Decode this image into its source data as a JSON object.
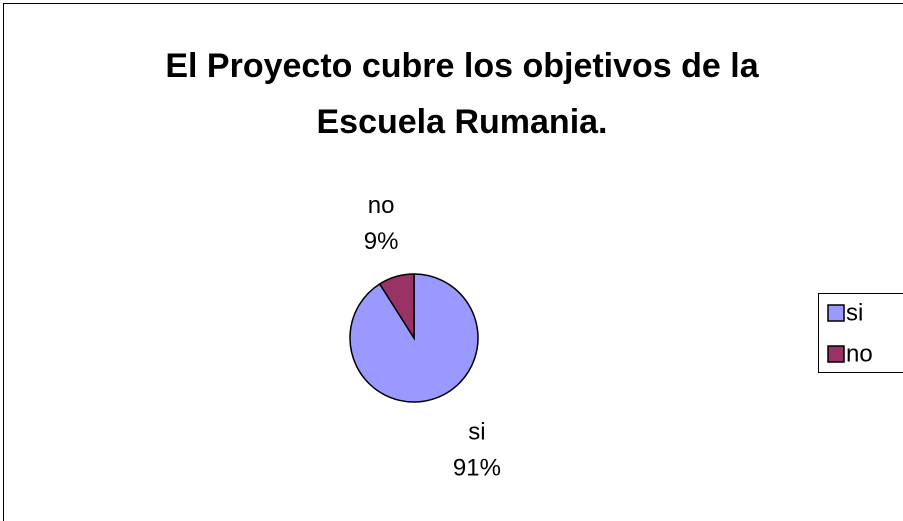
{
  "chart_data": {
    "type": "pie",
    "title": "El Proyecto cubre los objetivos de la Escuela Rumania.",
    "categories": [
      "si",
      "no"
    ],
    "values": [
      91,
      9
    ],
    "value_labels": [
      "91%",
      "9%"
    ],
    "colors": [
      "#9999ff",
      "#993366"
    ],
    "legend": "right"
  }
}
